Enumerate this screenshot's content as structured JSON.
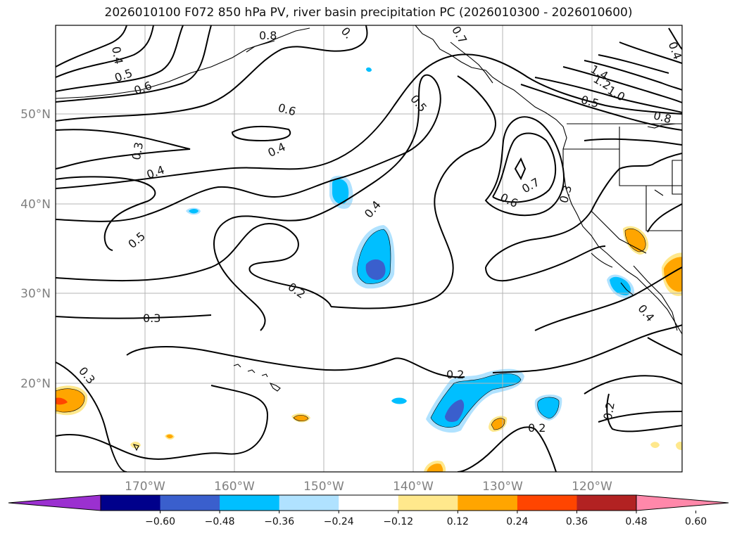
{
  "title": "2026010100 F072 850 hPa PV, river basin precipitation PC (2026010300 - 2026010600)",
  "lat_labels": [
    "50°N",
    "40°N",
    "30°N",
    "20°N"
  ],
  "lon_labels": [
    "170°W",
    "160°W",
    "150°W",
    "140°W",
    "130°W",
    "120°W"
  ],
  "contour_labels": [
    "0.8",
    "0.4",
    "0.5",
    "0.6",
    "0.3",
    "0.4",
    "0.5",
    "0.6",
    "0.4",
    "0.5",
    "0.4",
    "0.2",
    "0.3",
    "0.3",
    "0.2",
    "0.7",
    "0.6",
    "0.7",
    "0.3",
    "1.4",
    "1.2",
    "1.0",
    "0.5",
    "0.8",
    "0.2",
    "0.2",
    "0.4",
    "0.",
    "0.7"
  ],
  "colorbar": {
    "ticks": [
      "−0.60",
      "−0.48",
      "−0.36",
      "−0.24",
      "−0.12",
      "0.12",
      "0.24",
      "0.36",
      "0.48",
      "0.60"
    ],
    "colors": [
      "#9b30d0",
      "#00008b",
      "#3a5fcd",
      "#00bfff",
      "#b0e2ff",
      "#ffffff",
      "#ffe88c",
      "#ffa500",
      "#ff4500",
      "#b22222",
      "#ff88aa"
    ]
  },
  "colors": {
    "pos_light": "#ffe88c",
    "pos_mid": "#ffa500",
    "pos_strong": "#ff4500",
    "neg_light": "#b0e2ff",
    "neg_mid": "#00bfff",
    "neg_strong": "#3a5fcd"
  }
}
